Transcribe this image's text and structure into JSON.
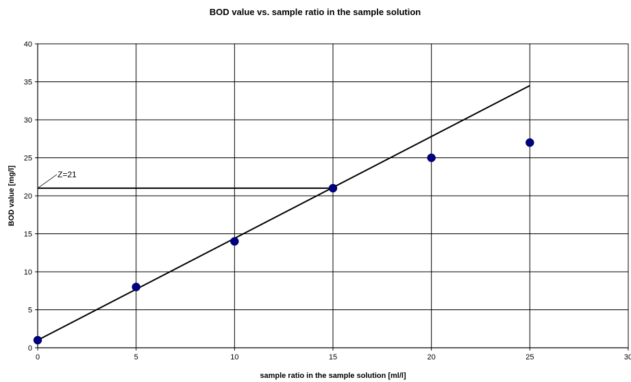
{
  "chart_data": {
    "type": "scatter",
    "title": "BOD value vs. sample ratio in the sample solution",
    "xlabel": "sample ratio in the sample solution  [ml/l]",
    "ylabel": "BOD value [mg/l]",
    "xlim": [
      0,
      30
    ],
    "ylim": [
      0,
      40
    ],
    "x_ticks": [
      0,
      5,
      10,
      15,
      20,
      25,
      30
    ],
    "y_ticks": [
      0,
      5,
      10,
      15,
      20,
      25,
      30,
      35,
      40
    ],
    "grid": true,
    "series": [
      {
        "marker": "circle",
        "color": "#000080",
        "points": [
          {
            "x": 0,
            "y": 1
          },
          {
            "x": 5,
            "y": 8
          },
          {
            "x": 10,
            "y": 14
          },
          {
            "x": 15,
            "y": 21
          },
          {
            "x": 20,
            "y": 25
          },
          {
            "x": 25,
            "y": 27
          }
        ]
      }
    ],
    "trendline": {
      "color": "#000000",
      "points": [
        {
          "x": 0,
          "y": 1
        },
        {
          "x": 25,
          "y": 34.5
        }
      ]
    },
    "reference_line": {
      "y": 21,
      "x_from": 0,
      "x_to": 15,
      "label": "Z=21"
    }
  }
}
